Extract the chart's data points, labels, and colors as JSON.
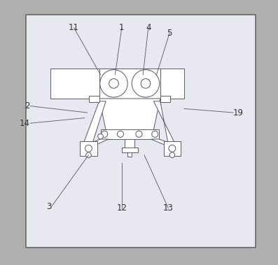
{
  "fig_bg": "#b0b0b0",
  "inner_bg": "#e8e8f0",
  "border_color": "#606060",
  "line_color": "#606070",
  "text_color": "#303030",
  "lw": 0.75,
  "leaders": {
    "11": {
      "lpos": [
        0.255,
        0.895
      ],
      "epos": [
        0.355,
        0.718
      ]
    },
    "1": {
      "lpos": [
        0.435,
        0.895
      ],
      "epos": [
        0.41,
        0.718
      ]
    },
    "4": {
      "lpos": [
        0.535,
        0.895
      ],
      "epos": [
        0.515,
        0.718
      ]
    },
    "5": {
      "lpos": [
        0.615,
        0.875
      ],
      "epos": [
        0.565,
        0.715
      ]
    },
    "2": {
      "lpos": [
        0.09,
        0.6
      ],
      "epos": [
        0.305,
        0.575
      ]
    },
    "14": {
      "lpos": [
        0.09,
        0.535
      ],
      "epos": [
        0.295,
        0.555
      ]
    },
    "3": {
      "lpos": [
        0.17,
        0.22
      ],
      "epos": [
        0.31,
        0.415
      ]
    },
    "12": {
      "lpos": [
        0.435,
        0.215
      ],
      "epos": [
        0.435,
        0.385
      ]
    },
    "13": {
      "lpos": [
        0.61,
        0.215
      ],
      "epos": [
        0.52,
        0.415
      ]
    },
    "19": {
      "lpos": [
        0.855,
        0.575
      ],
      "epos": [
        0.67,
        0.59
      ]
    }
  }
}
